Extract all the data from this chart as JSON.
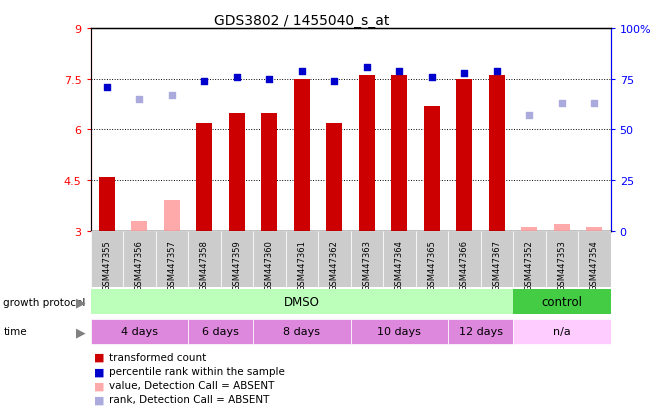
{
  "title": "GDS3802 / 1455040_s_at",
  "samples": [
    "GSM447355",
    "GSM447356",
    "GSM447357",
    "GSM447358",
    "GSM447359",
    "GSM447360",
    "GSM447361",
    "GSM447362",
    "GSM447363",
    "GSM447364",
    "GSM447365",
    "GSM447366",
    "GSM447367",
    "GSM447352",
    "GSM447353",
    "GSM447354"
  ],
  "transformed_count": [
    4.6,
    null,
    null,
    6.2,
    6.5,
    6.5,
    7.5,
    6.2,
    7.6,
    7.6,
    6.7,
    7.5,
    7.6,
    null,
    null,
    null
  ],
  "absent_value": [
    null,
    3.3,
    3.9,
    null,
    null,
    null,
    null,
    null,
    null,
    null,
    null,
    null,
    null,
    3.1,
    3.2,
    3.1
  ],
  "percentile_rank": [
    71,
    null,
    null,
    74,
    76,
    75,
    79,
    74,
    81,
    79,
    76,
    78,
    79,
    null,
    null,
    null
  ],
  "absent_rank": [
    null,
    65,
    67,
    null,
    null,
    null,
    null,
    null,
    null,
    null,
    null,
    null,
    null,
    57,
    63,
    63
  ],
  "ylim_left": [
    3,
    9
  ],
  "ylim_right": [
    0,
    100
  ],
  "yticks_left": [
    3,
    4.5,
    6.0,
    7.5,
    9
  ],
  "yticks_left_labels": [
    "3",
    "4.5",
    "6",
    "7.5",
    "9"
  ],
  "yticks_right": [
    0,
    25,
    50,
    75,
    100
  ],
  "yticks_right_labels": [
    "0",
    "25",
    "50",
    "75",
    "100%"
  ],
  "bar_color": "#cc0000",
  "absent_bar_color": "#ffaaaa",
  "dot_color": "#0000cc",
  "absent_dot_color": "#aaaadd",
  "dot_size": 25,
  "time_groups": [
    {
      "label": "4 days",
      "start": 0,
      "end": 3,
      "color": "#dd88dd"
    },
    {
      "label": "6 days",
      "start": 3,
      "end": 5,
      "color": "#dd88dd"
    },
    {
      "label": "8 days",
      "start": 5,
      "end": 8,
      "color": "#dd88dd"
    },
    {
      "label": "10 days",
      "start": 8,
      "end": 11,
      "color": "#dd88dd"
    },
    {
      "label": "12 days",
      "start": 11,
      "end": 13,
      "color": "#dd88dd"
    },
    {
      "label": "n/a",
      "start": 13,
      "end": 16,
      "color": "#ffccff"
    }
  ],
  "legend_items": [
    {
      "label": "transformed count",
      "color": "#cc0000"
    },
    {
      "label": "percentile rank within the sample",
      "color": "#0000cc"
    },
    {
      "label": "value, Detection Call = ABSENT",
      "color": "#ffaaaa"
    },
    {
      "label": "rank, Detection Call = ABSENT",
      "color": "#aaaadd"
    }
  ]
}
